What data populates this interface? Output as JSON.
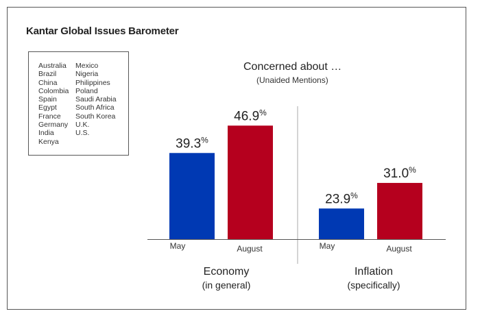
{
  "chart_data": {
    "type": "bar",
    "title": "Kantar Global Issues Barometer",
    "subtitle": "Concerned about …",
    "subtitle_note": "(Unaided Mentions)",
    "groups": [
      {
        "label": "Economy",
        "sublabel": "(in general)"
      },
      {
        "label": "Inflation",
        "sublabel": "(specifically)"
      }
    ],
    "series": [
      {
        "name": "May",
        "color": "#0039b3",
        "values": [
          39.3,
          23.9
        ]
      },
      {
        "name": "August",
        "color": "#b5001e",
        "values": [
          46.9,
          31.0
        ]
      }
    ],
    "value_suffix": "%",
    "ylim": [
      15.4,
      50
    ]
  },
  "countries": {
    "col1": [
      "Australia",
      "Brazil",
      "China",
      "Colombia",
      "Spain",
      "Egypt",
      "France",
      "Germany",
      "India",
      "Kenya"
    ],
    "col2": [
      "Mexico",
      "Nigeria",
      "Philippines",
      "Poland",
      "Saudi Arabia",
      "South Africa",
      "South Korea",
      "U.K.",
      "U.S."
    ]
  }
}
